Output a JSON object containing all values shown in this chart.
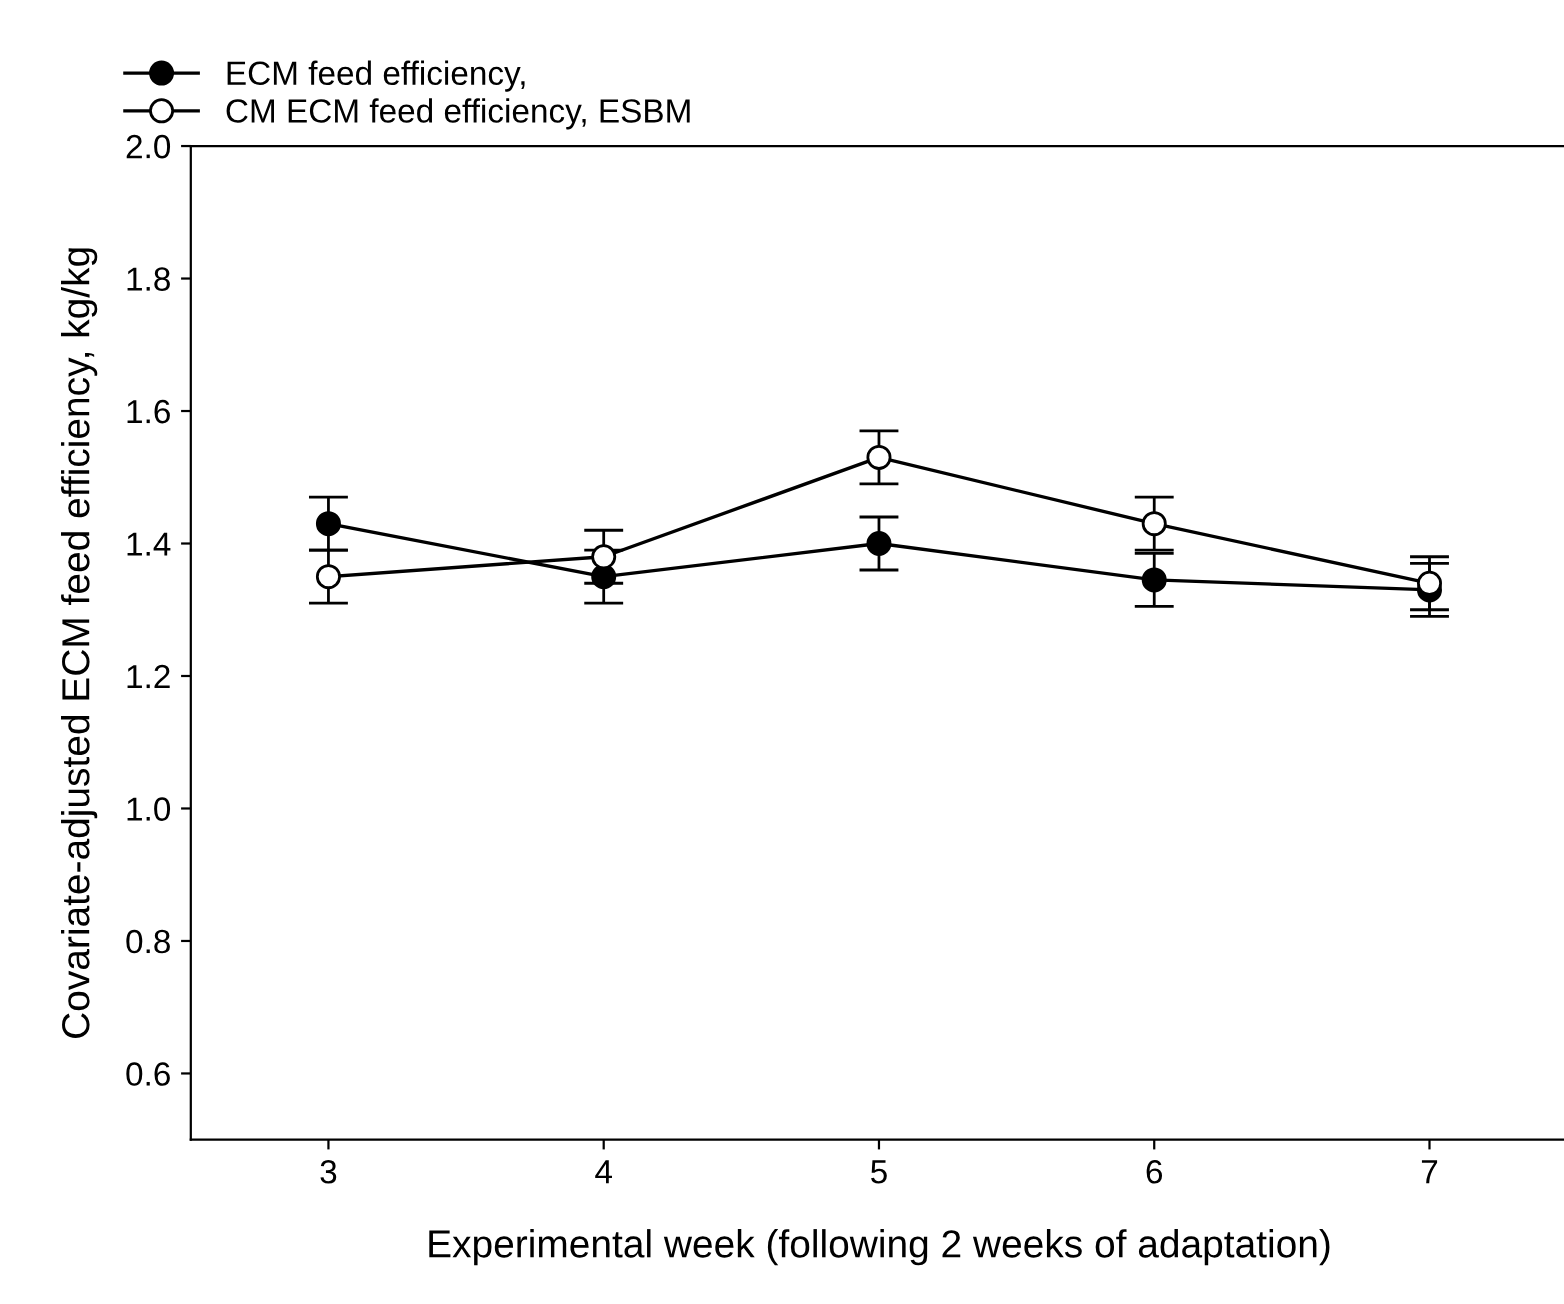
{
  "chart_data": {
    "type": "line",
    "xlabel": "Experimental week (following 2 weeks of adaptation)",
    "ylabel": "Covariate-adjusted ECM feed efficiency, kg/kg",
    "x": [
      3,
      4,
      5,
      6,
      7
    ],
    "series": [
      {
        "name": "ECM feed efficiency,",
        "color": "#000000",
        "values": [
          1.43,
          1.35,
          1.4,
          1.345,
          1.33
        ],
        "errors": [
          0.04,
          0.04,
          0.04,
          0.04,
          0.04
        ],
        "marker": "circle"
      },
      {
        "name": "CM ECM feed efficiency, ESBM",
        "color": "#000000",
        "values": [
          1.35,
          1.38,
          1.53,
          1.43,
          1.34
        ],
        "errors": [
          0.04,
          0.04,
          0.04,
          0.04,
          0.04
        ],
        "marker": "circle"
      }
    ],
    "xlim": [
      2.5,
      7.5
    ],
    "ylim": [
      0.5,
      2.0
    ],
    "xticks": [
      3,
      4,
      5,
      6,
      7
    ],
    "yticks": [
      {
        "value": 0.6,
        "label": "0.6"
      },
      {
        "value": 0.8,
        "label": "0.8"
      },
      {
        "value": 1.0,
        "label": "1.0"
      },
      {
        "value": 1.2,
        "label": "1.2"
      },
      {
        "value": 1.4,
        "label": "1.4"
      },
      {
        "value": 1.6,
        "label": "1.6"
      },
      {
        "value": 1.8,
        "label": "1.8"
      },
      {
        "value": 2.0,
        "label": "2.0"
      }
    ],
    "grid": false,
    "legend": "top left",
    "line_style": "solid"
  }
}
